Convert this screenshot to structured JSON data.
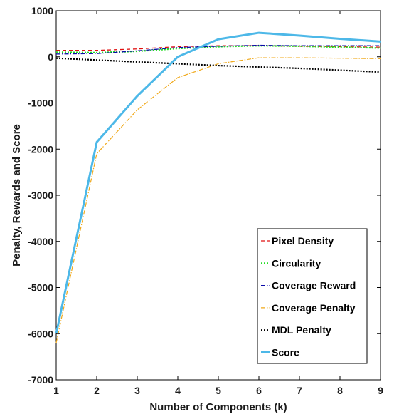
{
  "chart_data": {
    "type": "line",
    "xlabel": "Number of Components (k)",
    "ylabel": "Penalty, Rewards and Score",
    "xlim": [
      1,
      9
    ],
    "ylim": [
      -7000,
      1000
    ],
    "x": [
      1,
      2,
      3,
      4,
      5,
      6,
      7,
      8,
      9
    ],
    "xticks": [
      "1",
      "2",
      "3",
      "4",
      "5",
      "6",
      "7",
      "8",
      "9"
    ],
    "yticks": [
      {
        "value": 1000,
        "label": "1000"
      },
      {
        "value": 0,
        "label": "0"
      },
      {
        "value": -1000,
        "label": "-1000"
      },
      {
        "value": -2000,
        "label": "-2000"
      },
      {
        "value": -3000,
        "label": "-3000"
      },
      {
        "value": -4000,
        "label": "-4000"
      },
      {
        "value": -5000,
        "label": "-5000"
      },
      {
        "value": -6000,
        "label": "-6000"
      },
      {
        "value": -7000,
        "label": "-7000"
      }
    ],
    "grid": false,
    "legend_position": "bottom-right",
    "series": [
      {
        "name": "Pixel Density",
        "color": "#e01010",
        "dash": "5,4",
        "width": 1.3,
        "values": [
          140,
          140,
          170,
          220,
          240,
          240,
          230,
          220,
          210
        ]
      },
      {
        "name": "Circularity",
        "color": "#22dd22",
        "dash": "2,2",
        "width": 2.2,
        "values": [
          100,
          90,
          120,
          180,
          220,
          240,
          230,
          210,
          190
        ]
      },
      {
        "name": "Coverage Reward",
        "color": "#0a0aa8",
        "dash": "6,2,1.5,2",
        "width": 1.3,
        "values": [
          60,
          70,
          130,
          200,
          230,
          250,
          240,
          240,
          240
        ]
      },
      {
        "name": "Coverage Penalty",
        "color": "#f0a818",
        "dash": "6,2,1.5,2",
        "width": 1.2,
        "values": [
          -6200,
          -2100,
          -1150,
          -450,
          -150,
          -20,
          -20,
          -30,
          -40
        ]
      },
      {
        "name": "MDL Penalty",
        "color": "#000000",
        "dash": "2,2",
        "width": 2.2,
        "values": [
          -30,
          -70,
          -110,
          -150,
          -190,
          -220,
          -250,
          -290,
          -330
        ]
      },
      {
        "name": "Score",
        "color": "#4db8e8",
        "dash": "",
        "width": 3,
        "values": [
          -6000,
          -1850,
          -850,
          0,
          380,
          520,
          460,
          390,
          330
        ]
      }
    ]
  }
}
